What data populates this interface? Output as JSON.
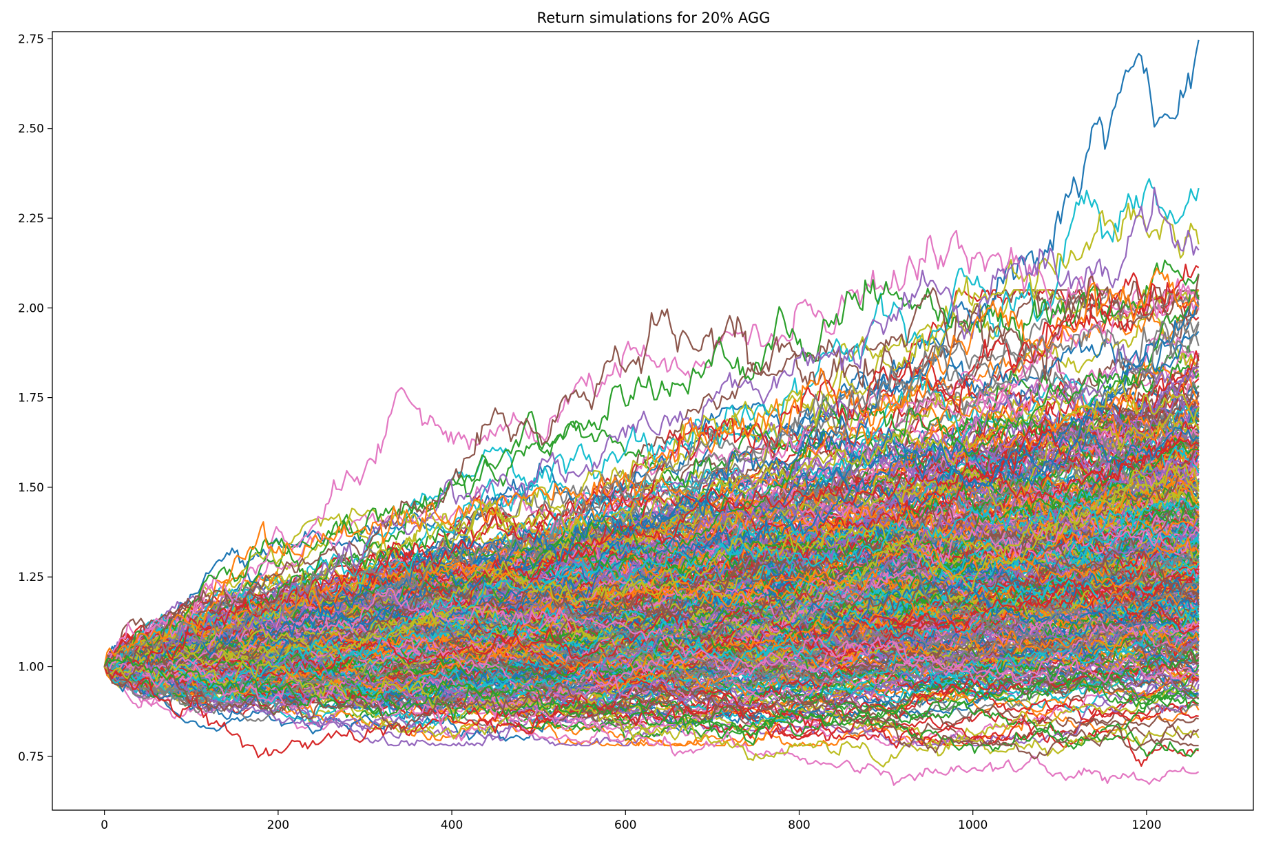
{
  "chart_data": {
    "type": "line",
    "title": "Return simulations for 20% AGG",
    "xlabel": "",
    "ylabel": "",
    "xlim": [
      -60,
      1323
    ],
    "ylim": [
      0.6,
      2.77
    ],
    "x_ticks": [
      0,
      200,
      400,
      600,
      800,
      1000,
      1200
    ],
    "x_tick_labels": [
      "0",
      "200",
      "400",
      "600",
      "800",
      "1000",
      "1200"
    ],
    "y_ticks": [
      0.75,
      1.0,
      1.25,
      1.5,
      1.75,
      2.0,
      2.25,
      2.5,
      2.75
    ],
    "y_tick_labels": [
      "0.75",
      "1.00",
      "1.25",
      "1.50",
      "1.75",
      "2.00",
      "2.25",
      "2.50",
      "2.75"
    ],
    "grid": false,
    "legend": "none",
    "num_steps": 1260,
    "start_value": 1.0,
    "colors": [
      "#1f77b4",
      "#ff7f0e",
      "#2ca02c",
      "#d62728",
      "#9467bd",
      "#8c564b",
      "#e377c2",
      "#7f7f7f",
      "#bcbd22",
      "#17becf"
    ],
    "series": [
      {
        "color": "#1f77b4",
        "values": [
          [
            0,
            1.0
          ],
          [
            200,
            1.12
          ],
          [
            400,
            1.28
          ],
          [
            600,
            1.42
          ],
          [
            800,
            1.62
          ],
          [
            1000,
            1.95
          ],
          [
            1100,
            2.22
          ],
          [
            1200,
            2.62
          ],
          [
            1260,
            2.67
          ]
        ]
      },
      {
        "color": "#17becf",
        "values": [
          [
            0,
            1.0
          ],
          [
            200,
            1.2
          ],
          [
            400,
            1.45
          ],
          [
            600,
            1.6
          ],
          [
            800,
            1.8
          ],
          [
            1000,
            2.05
          ],
          [
            1100,
            2.18
          ],
          [
            1200,
            2.3
          ],
          [
            1260,
            2.32
          ]
        ]
      },
      {
        "color": "#bcbd22",
        "values": [
          [
            0,
            1.0
          ],
          [
            200,
            1.18
          ],
          [
            400,
            1.35
          ],
          [
            600,
            1.55
          ],
          [
            800,
            1.75
          ],
          [
            1000,
            1.98
          ],
          [
            1200,
            2.2
          ],
          [
            1260,
            2.25
          ]
        ]
      },
      {
        "color": "#e377c2",
        "values": [
          [
            0,
            1.0
          ],
          [
            250,
            1.42
          ],
          [
            360,
            1.72
          ],
          [
            500,
            1.65
          ],
          [
            600,
            1.88
          ],
          [
            700,
            1.85
          ],
          [
            930,
            2.15
          ],
          [
            1000,
            2.1
          ],
          [
            1200,
            2.05
          ],
          [
            1260,
            2.0
          ]
        ]
      },
      {
        "color": "#2ca02c",
        "values": [
          [
            0,
            1.0
          ],
          [
            200,
            1.3
          ],
          [
            400,
            1.5
          ],
          [
            600,
            1.78
          ],
          [
            700,
            1.85
          ],
          [
            800,
            1.95
          ],
          [
            900,
            2.08
          ],
          [
            1000,
            2.0
          ],
          [
            1260,
            2.1
          ]
        ]
      },
      {
        "color": "#8c564b",
        "values": [
          [
            0,
            1.0
          ],
          [
            200,
            1.22
          ],
          [
            400,
            1.5
          ],
          [
            630,
            1.93
          ],
          [
            800,
            1.85
          ],
          [
            1000,
            1.95
          ],
          [
            1260,
            2.02
          ]
        ]
      },
      {
        "color": "#9467bd",
        "values": [
          [
            0,
            1.0
          ],
          [
            200,
            1.2
          ],
          [
            400,
            1.48
          ],
          [
            600,
            1.6
          ],
          [
            800,
            1.85
          ],
          [
            1000,
            2.08
          ],
          [
            1260,
            2.12
          ]
        ]
      },
      {
        "color": "#d62728",
        "values": [
          [
            0,
            1.0
          ],
          [
            200,
            1.15
          ],
          [
            400,
            1.35
          ],
          [
            600,
            1.5
          ],
          [
            800,
            1.7
          ],
          [
            1000,
            1.9
          ],
          [
            1260,
            2.12
          ]
        ]
      },
      {
        "color": "#ff7f0e",
        "values": [
          [
            0,
            1.0
          ],
          [
            180,
            1.3
          ],
          [
            400,
            1.4
          ],
          [
            600,
            1.55
          ],
          [
            800,
            1.7
          ],
          [
            1000,
            1.9
          ],
          [
            1260,
            2.08
          ]
        ]
      },
      {
        "color": "#7f7f7f",
        "values": [
          [
            0,
            1.0
          ],
          [
            200,
            1.15
          ],
          [
            400,
            1.3
          ],
          [
            600,
            1.48
          ],
          [
            800,
            1.65
          ],
          [
            1000,
            1.85
          ],
          [
            1260,
            1.95
          ]
        ]
      },
      {
        "color": "#d62728",
        "values": [
          [
            0,
            1.0
          ],
          [
            100,
            0.9
          ],
          [
            180,
            0.77
          ],
          [
            300,
            0.8
          ],
          [
            500,
            0.85
          ],
          [
            700,
            0.88
          ],
          [
            1000,
            0.8
          ],
          [
            1260,
            0.77
          ]
        ]
      },
      {
        "color": "#e377c2",
        "values": [
          [
            0,
            1.0
          ],
          [
            200,
            0.9
          ],
          [
            500,
            0.85
          ],
          [
            750,
            0.75
          ],
          [
            900,
            0.72
          ],
          [
            1050,
            0.7
          ],
          [
            1260,
            0.72
          ]
        ]
      },
      {
        "color": "#bcbd22",
        "values": [
          [
            0,
            1.0
          ],
          [
            200,
            0.95
          ],
          [
            500,
            0.88
          ],
          [
            700,
            0.8
          ],
          [
            750,
            0.76
          ],
          [
            900,
            0.78
          ],
          [
            1260,
            0.82
          ]
        ]
      },
      {
        "color": "#2ca02c",
        "values": [
          [
            0,
            1.0
          ],
          [
            200,
            0.92
          ],
          [
            500,
            0.9
          ],
          [
            800,
            0.85
          ],
          [
            1000,
            0.78
          ],
          [
            1260,
            0.78
          ]
        ]
      },
      {
        "color": "#8c564b",
        "values": [
          [
            0,
            1.0
          ],
          [
            200,
            0.88
          ],
          [
            500,
            0.92
          ],
          [
            800,
            0.88
          ],
          [
            1000,
            0.75
          ],
          [
            1260,
            0.79
          ]
        ]
      }
    ]
  }
}
